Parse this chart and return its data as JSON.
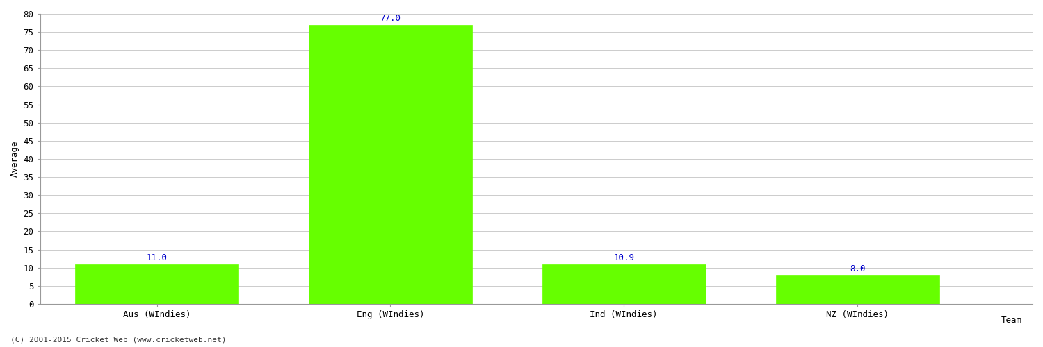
{
  "categories": [
    "Aus (WIndies)",
    "Eng (WIndies)",
    "Ind (WIndies)",
    "NZ (WIndies)"
  ],
  "values": [
    11.0,
    77.0,
    10.9,
    8.0
  ],
  "bar_color": "#66ff00",
  "bar_edge_color": "#66ff00",
  "label_color": "#0000cc",
  "xlabel": "Team",
  "ylabel": "Average",
  "ylim": [
    0,
    80
  ],
  "yticks": [
    0,
    5,
    10,
    15,
    20,
    25,
    30,
    35,
    40,
    45,
    50,
    55,
    60,
    65,
    70,
    75,
    80
  ],
  "label_fontsize": 9,
  "axis_label_fontsize": 9,
  "tick_fontsize": 9,
  "footer_text": "(C) 2001-2015 Cricket Web (www.cricketweb.net)",
  "footer_fontsize": 8,
  "background_color": "#ffffff",
  "grid_color": "#cccccc",
  "bar_positions": [
    1,
    3,
    5,
    7
  ],
  "bar_width": 1.4,
  "xlim": [
    0,
    8.5
  ]
}
